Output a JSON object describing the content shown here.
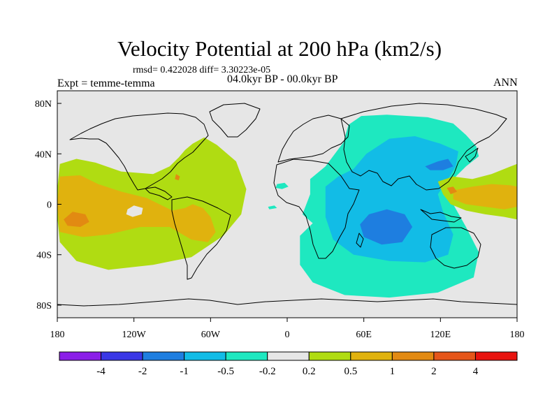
{
  "header": {
    "title": "Velocity Potential at 200 hPa (km2/s)",
    "stats": "rmsd= 0.422028 diff= 3.30223e-05",
    "experiment": "Expt = temme-temma",
    "period": "04.0kyr BP - 00.0kyr BP",
    "season": "ANN"
  },
  "chart_data": {
    "type": "heatmap",
    "title": "Velocity Potential at 200 hPa (km2/s)",
    "subtitle": "04.0kyr BP - 00.0kyr BP",
    "xlabel": "",
    "ylabel": "",
    "xlim": [
      -180,
      180
    ],
    "ylim": [
      -90,
      90
    ],
    "x_ticks": [
      {
        "value": -180,
        "label": "180"
      },
      {
        "value": -120,
        "label": "120W"
      },
      {
        "value": -60,
        "label": "60W"
      },
      {
        "value": 0,
        "label": "0"
      },
      {
        "value": 60,
        "label": "60E"
      },
      {
        "value": 120,
        "label": "120E"
      },
      {
        "value": 180,
        "label": "180"
      }
    ],
    "y_ticks": [
      {
        "value": 80,
        "label": "80N"
      },
      {
        "value": 40,
        "label": "40N"
      },
      {
        "value": 0,
        "label": "0"
      },
      {
        "value": -40,
        "label": "40S"
      },
      {
        "value": -80,
        "label": "80S"
      }
    ],
    "colorbar": {
      "levels": [
        "-4",
        "-2",
        "-1",
        "-0.5",
        "-0.2",
        "0.2",
        "0.5",
        "1",
        "2",
        "4"
      ],
      "colors": [
        "#8b1ee8",
        "#3a37e5",
        "#1e7ee0",
        "#12bce6",
        "#1ee8c0",
        "#e6e6e6",
        "#b0dc12",
        "#e0b20e",
        "#e28a12",
        "#e5561a",
        "#e8140f"
      ]
    },
    "regions": [
      {
        "name": "pacific-americas-positive",
        "level": "0.2 to 0.5",
        "color": "#b0dc12",
        "polygon": [
          [
            -178,
            32
          ],
          [
            -165,
            36
          ],
          [
            -150,
            33
          ],
          [
            -130,
            26
          ],
          [
            -105,
            24
          ],
          [
            -92,
            30
          ],
          [
            -85,
            37
          ],
          [
            -80,
            43
          ],
          [
            -74,
            48
          ],
          [
            -65,
            53
          ],
          [
            -55,
            47
          ],
          [
            -40,
            34
          ],
          [
            -32,
            12
          ],
          [
            -36,
            -8
          ],
          [
            -50,
            -25
          ],
          [
            -75,
            -42
          ],
          [
            -105,
            -48
          ],
          [
            -140,
            -52
          ],
          [
            -165,
            -45
          ],
          [
            -178,
            -30
          ],
          [
            -180,
            -10
          ],
          [
            -180,
            12
          ]
        ]
      },
      {
        "name": "pacific-americas-positive-inner",
        "level": "0.5 to 1",
        "color": "#e0b20e",
        "polygon": [
          [
            -178,
            22
          ],
          [
            -162,
            23
          ],
          [
            -148,
            16
          ],
          [
            -130,
            10
          ],
          [
            -110,
            5
          ],
          [
            -90,
            -5
          ],
          [
            -80,
            -3
          ],
          [
            -74,
            0
          ],
          [
            -66,
            -3
          ],
          [
            -60,
            -10
          ],
          [
            -56,
            -22
          ],
          [
            -62,
            -30
          ],
          [
            -75,
            -28
          ],
          [
            -92,
            -18
          ],
          [
            -115,
            -18
          ],
          [
            -140,
            -24
          ],
          [
            -160,
            -26
          ],
          [
            -178,
            -22
          ],
          [
            -180,
            0
          ]
        ]
      },
      {
        "name": "central-pacific-max",
        "level": "1 to 2",
        "color": "#e28a12",
        "polygon": [
          [
            -175,
            -12
          ],
          [
            -168,
            -6
          ],
          [
            -158,
            -8
          ],
          [
            -155,
            -14
          ],
          [
            -162,
            -18
          ],
          [
            -172,
            -17
          ]
        ]
      },
      {
        "name": "caribbean-max",
        "level": "1 to 2",
        "color": "#e28a12",
        "polygon": [
          [
            -87,
            24
          ],
          [
            -84,
            22
          ],
          [
            -85,
            19
          ],
          [
            -88,
            20
          ]
        ]
      },
      {
        "name": "central-pacific-neutral-hole",
        "level": "-0.2 to 0.2",
        "color": "#e6e6e6",
        "polygon": [
          [
            -125,
            -4
          ],
          [
            -120,
            -1
          ],
          [
            -113,
            -3
          ],
          [
            -114,
            -8
          ],
          [
            -121,
            -10
          ],
          [
            -126,
            -8
          ]
        ]
      },
      {
        "name": "indian-ocean-negative",
        "level": "-0.5 to -0.2",
        "color": "#1ee8c0",
        "polygon": [
          [
            18,
            20
          ],
          [
            30,
            30
          ],
          [
            44,
            49
          ],
          [
            48,
            63
          ],
          [
            58,
            70
          ],
          [
            78,
            71
          ],
          [
            110,
            69
          ],
          [
            130,
            64
          ],
          [
            140,
            55
          ],
          [
            148,
            46
          ],
          [
            150,
            38
          ],
          [
            140,
            30
          ],
          [
            132,
            22
          ],
          [
            128,
            12
          ],
          [
            130,
            0
          ],
          [
            140,
            -18
          ],
          [
            150,
            -38
          ],
          [
            146,
            -58
          ],
          [
            118,
            -70
          ],
          [
            80,
            -74
          ],
          [
            45,
            -72
          ],
          [
            20,
            -62
          ],
          [
            10,
            -48
          ],
          [
            10,
            -25
          ],
          [
            20,
            -15
          ],
          [
            12,
            -8
          ],
          [
            18,
            8
          ]
        ]
      },
      {
        "name": "indian-ocean-negative-inner",
        "level": "-1 to -0.5",
        "color": "#12bce6",
        "polygon": [
          [
            30,
            14
          ],
          [
            40,
            22
          ],
          [
            52,
            28
          ],
          [
            62,
            40
          ],
          [
            80,
            52
          ],
          [
            100,
            54
          ],
          [
            120,
            48
          ],
          [
            134,
            42
          ],
          [
            132,
            30
          ],
          [
            126,
            20
          ],
          [
            118,
            8
          ],
          [
            122,
            -6
          ],
          [
            130,
            -24
          ],
          [
            126,
            -40
          ],
          [
            108,
            -46
          ],
          [
            80,
            -45
          ],
          [
            52,
            -40
          ],
          [
            36,
            -28
          ],
          [
            30,
            -10
          ],
          [
            30,
            2
          ]
        ]
      },
      {
        "name": "indian-ocean-core",
        "level": "-2 to -1",
        "color": "#1e7ee0",
        "polygon": [
          [
            64,
            -8
          ],
          [
            78,
            -4
          ],
          [
            92,
            -8
          ],
          [
            98,
            -18
          ],
          [
            90,
            -30
          ],
          [
            74,
            -32
          ],
          [
            60,
            -26
          ],
          [
            57,
            -16
          ]
        ]
      },
      {
        "name": "east-asia-core",
        "level": "-2 to -1",
        "color": "#1e7ee0",
        "polygon": [
          [
            108,
            30
          ],
          [
            118,
            34
          ],
          [
            126,
            36
          ],
          [
            130,
            30
          ],
          [
            122,
            27
          ],
          [
            112,
            27
          ]
        ]
      },
      {
        "name": "west-pacific-positive",
        "level": "0.2 to 0.5",
        "color": "#b0dc12",
        "polygon": [
          [
            118,
            18
          ],
          [
            130,
            22
          ],
          [
            145,
            20
          ],
          [
            160,
            24
          ],
          [
            175,
            30
          ],
          [
            180,
            32
          ],
          [
            180,
            -12
          ],
          [
            170,
            -10
          ],
          [
            155,
            -8
          ],
          [
            140,
            -5
          ],
          [
            128,
            0
          ],
          [
            122,
            8
          ]
        ]
      },
      {
        "name": "west-pacific-positive-inner",
        "level": "0.5 to 1",
        "color": "#e0b20e",
        "polygon": [
          [
            130,
            11
          ],
          [
            145,
            14
          ],
          [
            160,
            16
          ],
          [
            175,
            15
          ],
          [
            180,
            14
          ],
          [
            180,
            -2
          ],
          [
            170,
            -4
          ],
          [
            155,
            -2
          ],
          [
            140,
            0
          ],
          [
            130,
            4
          ]
        ]
      },
      {
        "name": "west-pacific-max",
        "level": "1 to 2",
        "color": "#e28a12",
        "polygon": [
          [
            125,
            13
          ],
          [
            130,
            14
          ],
          [
            133,
            10
          ],
          [
            128,
            8
          ]
        ]
      },
      {
        "name": "atlantic-negative-patch",
        "level": "-0.5 to -0.2",
        "color": "#1ee8c0",
        "polygon": [
          [
            -8,
            16
          ],
          [
            -2,
            17
          ],
          [
            1,
            14
          ],
          [
            -4,
            12
          ],
          [
            -9,
            13
          ]
        ]
      },
      {
        "name": "atlantic-negative-patch-2",
        "level": "-0.5 to -0.2",
        "color": "#1ee8c0",
        "polygon": [
          [
            -15,
            -2
          ],
          [
            -10,
            -1
          ],
          [
            -8,
            -3
          ],
          [
            -14,
            -4
          ]
        ]
      }
    ]
  }
}
